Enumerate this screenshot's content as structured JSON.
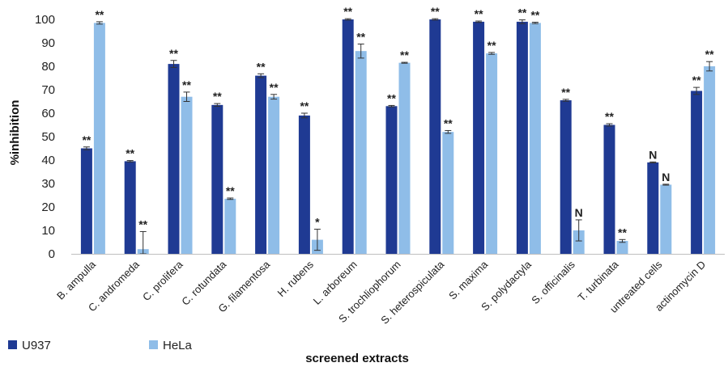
{
  "chart_data": {
    "type": "bar",
    "title": "",
    "xlabel": "screened extracts",
    "ylabel": "%inhibition",
    "ylim": [
      0,
      100
    ],
    "yticks": [
      0,
      10,
      20,
      30,
      40,
      50,
      60,
      70,
      80,
      90,
      100
    ],
    "grid": false,
    "legend_position": "bottom-left",
    "categories": [
      "B. ampulla",
      "C. andromeda",
      "C. prolifera",
      "C. rotundata",
      "G. filamentosa",
      "H. rubens",
      "L. arboreum",
      "S. trochliophorum",
      "S. heterospiculata",
      "S. maxima",
      "S. polydactyla",
      "S. officinalis",
      "T. turbinata",
      "untreated cells",
      "actinomycin D"
    ],
    "series": [
      {
        "name": "U937",
        "color": "#1f3a93",
        "values": [
          45,
          39.5,
          81,
          63.5,
          76,
          59,
          100,
          63,
          100,
          99,
          99,
          65.5,
          55,
          39,
          69.5
        ],
        "errors": [
          0.6,
          0.3,
          1.5,
          0.6,
          0.8,
          1,
          0.3,
          0.3,
          0.3,
          0.3,
          0.8,
          0.4,
          0.5,
          0.2,
          1.5
        ],
        "significance": [
          "**",
          "**",
          "**",
          "**",
          "**",
          "**",
          "**",
          "**",
          "**",
          "**",
          "**",
          "**",
          "**",
          "N",
          "**"
        ]
      },
      {
        "name": "HeLa",
        "color": "#8fbde8",
        "values": [
          98.5,
          2,
          67,
          23.5,
          67,
          6,
          86.5,
          81.5,
          52,
          85.5,
          98.5,
          10,
          5.5,
          29.5,
          80
        ],
        "errors": [
          0.5,
          7.5,
          2,
          0.3,
          1,
          4.5,
          3,
          0.2,
          0.6,
          0.4,
          0.3,
          4.5,
          0.6,
          0.2,
          2
        ],
        "significance": [
          "**",
          "**",
          "**",
          "**",
          "**",
          "*",
          "**",
          "**",
          "**",
          "**",
          "**",
          "N",
          "**",
          "N",
          "**"
        ]
      }
    ]
  }
}
